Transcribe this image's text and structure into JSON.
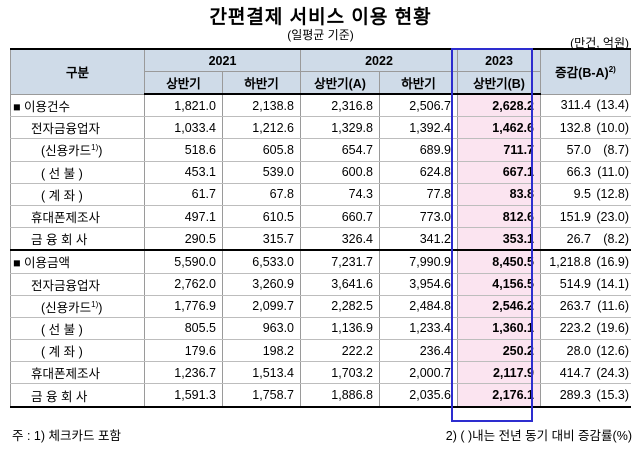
{
  "title": "간편결제 서비스 이용 현황",
  "subtitle": "(일평균 기준)",
  "unit": "(만건, 억원)",
  "header": {
    "category": "구분",
    "year_2021": "2021",
    "year_2022": "2022",
    "year_2023": "2023",
    "change": "증감(B-A)",
    "change_sup": "2)",
    "h1_2021": "상반기",
    "h2_2021": "하반기",
    "h1_2022": "상반기(A)",
    "h2_2022": "하반기",
    "h1_2023": "상반기(B)"
  },
  "rows": [
    {
      "label": "■ 이용건수",
      "sup": "",
      "v1": "1,821.0",
      "v2": "2,138.8",
      "v3": "2,316.8",
      "v4": "2,506.7",
      "v5": "2,628.2",
      "c1": "311.4",
      "c2": "(13.4)"
    },
    {
      "label": "전자금융업자",
      "sup": "",
      "v1": "1,033.4",
      "v2": "1,212.6",
      "v3": "1,329.8",
      "v4": "1,392.4",
      "v5": "1,462.6",
      "c1": "132.8",
      "c2": "(10.0)"
    },
    {
      "label": "(신용카드",
      "sup": "1)",
      "label_end": ")",
      "v1": "518.6",
      "v2": "605.8",
      "v3": "654.7",
      "v4": "689.9",
      "v5": "711.7",
      "c1": "57.0",
      "c2": "(8.7)"
    },
    {
      "label": "( 선    불 )",
      "sup": "",
      "v1": "453.1",
      "v2": "539.0",
      "v3": "600.8",
      "v4": "624.8",
      "v5": "667.1",
      "c1": "66.3",
      "c2": "(11.0)"
    },
    {
      "label": "( 계    좌 )",
      "sup": "",
      "v1": "61.7",
      "v2": "67.8",
      "v3": "74.3",
      "v4": "77.8",
      "v5": "83.8",
      "c1": "9.5",
      "c2": "(12.8)"
    },
    {
      "label": "휴대폰제조사",
      "sup": "",
      "v1": "497.1",
      "v2": "610.5",
      "v3": "660.7",
      "v4": "773.0",
      "v5": "812.6",
      "c1": "151.9",
      "c2": "(23.0)"
    },
    {
      "label": "금 융 회 사",
      "sup": "",
      "v1": "290.5",
      "v2": "315.7",
      "v3": "326.4",
      "v4": "341.2",
      "v5": "353.1",
      "c1": "26.7",
      "c2": "(8.2)"
    },
    {
      "label": "■ 이용금액",
      "sup": "",
      "v1": "5,590.0",
      "v2": "6,533.0",
      "v3": "7,231.7",
      "v4": "7,990.9",
      "v5": "8,450.5",
      "c1": "1,218.8",
      "c2": "(16.9)"
    },
    {
      "label": "전자금융업자",
      "sup": "",
      "v1": "2,762.0",
      "v2": "3,260.9",
      "v3": "3,641.6",
      "v4": "3,954.6",
      "v5": "4,156.5",
      "c1": "514.9",
      "c2": "(14.1)"
    },
    {
      "label": "(신용카드",
      "sup": "1)",
      "label_end": ")",
      "v1": "1,776.9",
      "v2": "2,099.7",
      "v3": "2,282.5",
      "v4": "2,484.8",
      "v5": "2,546.2",
      "c1": "263.7",
      "c2": "(11.6)"
    },
    {
      "label": "( 선    불 )",
      "sup": "",
      "v1": "805.5",
      "v2": "963.0",
      "v3": "1,136.9",
      "v4": "1,233.4",
      "v5": "1,360.1",
      "c1": "223.2",
      "c2": "(19.6)"
    },
    {
      "label": "( 계    좌 )",
      "sup": "",
      "v1": "179.6",
      "v2": "198.2",
      "v3": "222.2",
      "v4": "236.4",
      "v5": "250.2",
      "c1": "28.0",
      "c2": "(12.6)"
    },
    {
      "label": "휴대폰제조사",
      "sup": "",
      "v1": "1,236.7",
      "v2": "1,513.4",
      "v3": "1,703.2",
      "v4": "2,000.7",
      "v5": "2,117.9",
      "c1": "414.7",
      "c2": "(24.3)"
    },
    {
      "label": "금 융 회 사",
      "sup": "",
      "v1": "1,591.3",
      "v2": "1,758.7",
      "v3": "1,886.8",
      "v4": "2,035.6",
      "v5": "2,176.1",
      "c1": "289.3",
      "c2": "(15.3)"
    }
  ],
  "notes": {
    "note1": "주 : 1) 체크카드 포함",
    "note2": "2) (   )내는 전년 동기 대비 증감률(%)"
  },
  "colors": {
    "header_bg": "#cfdbe8",
    "highlight_bg": "#fbe4f0",
    "highlight_border": "#2d2dcf"
  }
}
